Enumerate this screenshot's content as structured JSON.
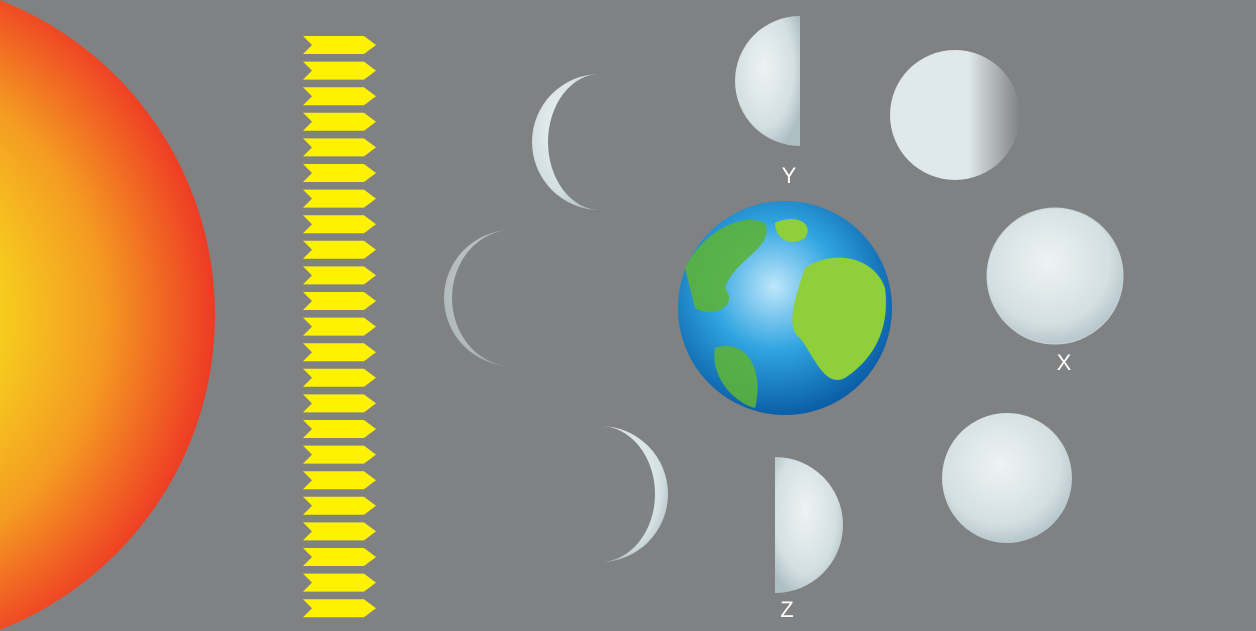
{
  "labels": {
    "y": "Y",
    "x": "X",
    "z": "Z"
  }
}
